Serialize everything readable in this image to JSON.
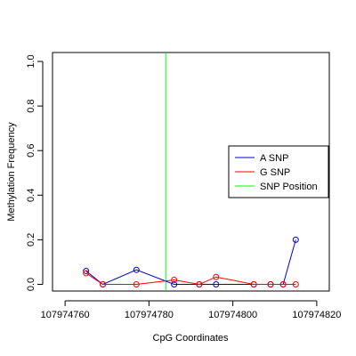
{
  "chart_data": {
    "type": "line",
    "xlabel": "CpG Coordinates",
    "ylabel": "Methylation Frequency",
    "xlim": [
      107974757,
      107974823
    ],
    "ylim": [
      -0.03,
      1.04
    ],
    "x_ticks": [
      107974760,
      107974780,
      107974800,
      107974820
    ],
    "x_tick_labels": [
      "107974760",
      "107974780",
      "107974800",
      "107974820"
    ],
    "y_ticks": [
      0.0,
      0.2,
      0.4,
      0.6,
      0.8,
      1.0
    ],
    "y_tick_labels": [
      "0.0",
      "0.2",
      "0.4",
      "0.6",
      "0.8",
      "1.0"
    ],
    "snp_position": 107974784,
    "series": [
      {
        "name": "A SNP",
        "color": "#0000cc",
        "x": [
          107974765,
          107974769,
          107974777,
          107974786,
          107974792,
          107974796,
          107974805,
          107974809,
          107974812,
          107974815
        ],
        "y": [
          0.06,
          0.0,
          0.065,
          0.0,
          0.0,
          0.0,
          0.0,
          0.0,
          0.0,
          0.2
        ]
      },
      {
        "name": "G SNP",
        "color": "#ff0000",
        "x": [
          107974765,
          107974769,
          107974777,
          107974786,
          107974792,
          107974796,
          107974805,
          107974809,
          107974812,
          107974815
        ],
        "y": [
          0.05,
          0.0,
          0.0,
          0.02,
          0.0,
          0.033,
          0.0,
          0.0,
          0.0,
          0.0
        ]
      }
    ],
    "legend": {
      "position": "right",
      "entries": [
        {
          "label": "A SNP",
          "color": "#0000cc"
        },
        {
          "label": "G SNP",
          "color": "#ff0000"
        },
        {
          "label": "SNP Position",
          "color": "#00ff00"
        }
      ]
    }
  }
}
